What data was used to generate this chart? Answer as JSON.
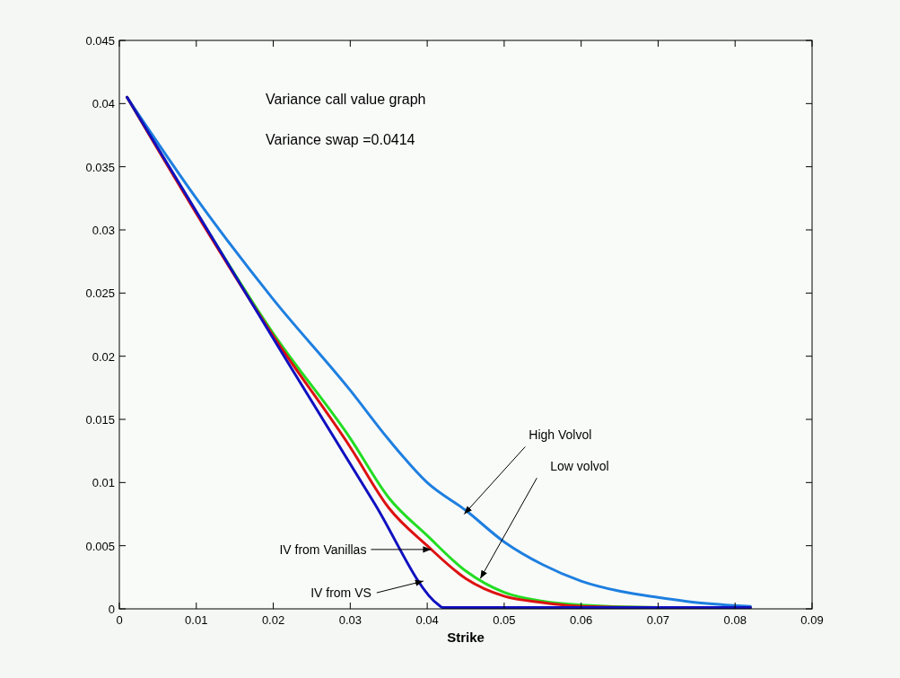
{
  "chart_data": {
    "type": "line",
    "xlabel": "Strike",
    "xlim": [
      0,
      0.09
    ],
    "xticks": [
      {
        "value": 0,
        "label": "0"
      },
      0.01,
      0.02,
      0.03,
      0.04,
      0.05,
      0.06,
      0.07,
      0.08,
      0.09
    ],
    "ylim": [
      0,
      0.045
    ],
    "yticks": [
      {
        "value": 0,
        "label": "0"
      },
      0.005,
      0.01,
      0.015,
      0.02,
      0.025,
      0.03,
      0.035,
      0.04,
      0.045
    ],
    "grid": false,
    "line_style": "solid",
    "marker": "none",
    "series": [
      {
        "color": "#1e7fe0",
        "x": [
          0.001,
          0.01,
          0.02,
          0.03,
          0.035,
          0.04,
          0.045,
          0.05,
          0.055,
          0.06,
          0.065,
          0.07,
          0.075,
          0.082
        ],
        "values": [
          0.0405,
          0.0325,
          0.0245,
          0.0173,
          0.0134,
          0.01,
          0.0078,
          0.0053,
          0.0035,
          0.0022,
          0.0014,
          0.0009,
          0.0005,
          0.0002
        ]
      },
      {
        "color": "#22dd22",
        "x": [
          0.001,
          0.01,
          0.02,
          0.03,
          0.035,
          0.04,
          0.045,
          0.05,
          0.055,
          0.06,
          0.07,
          0.082
        ],
        "values": [
          0.0405,
          0.0314,
          0.0218,
          0.0135,
          0.0088,
          0.0058,
          0.003,
          0.0013,
          0.0006,
          0.0003,
          0.0001,
          0.0001
        ]
      },
      {
        "color": "#dd1111",
        "x": [
          0.001,
          0.01,
          0.02,
          0.03,
          0.035,
          0.04,
          0.045,
          0.05,
          0.055,
          0.06,
          0.07,
          0.082
        ],
        "values": [
          0.0405,
          0.0313,
          0.0216,
          0.0128,
          0.008,
          0.005,
          0.0024,
          0.001,
          0.0005,
          0.0002,
          0.0001,
          0.0001
        ]
      },
      {
        "color": "#1010c0",
        "x": [
          0.001,
          0.02,
          0.033,
          0.0415,
          0.042,
          0.082
        ],
        "values": [
          0.0405,
          0.0214,
          0.0085,
          0.0003,
          0.0001,
          0.0001
        ]
      }
    ],
    "annotations": [
      "Variance call value graph",
      "Variance swap =0.0414",
      {
        "text": "High Volvol",
        "x": 0.0448,
        "y": 0.0075
      },
      {
        "text": "Low volvol",
        "x": 0.0469,
        "y": 0.0024
      },
      {
        "text": "IV from Vanillas",
        "x": 0.0405,
        "y": 0.0047
      },
      {
        "text": "IV from VS",
        "x": 0.0395,
        "y": 0.0022
      }
    ]
  }
}
